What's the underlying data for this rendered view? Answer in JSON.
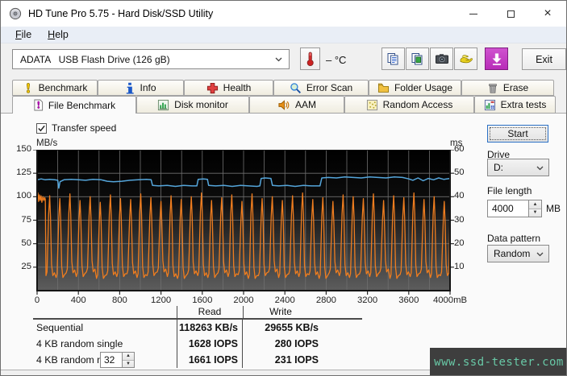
{
  "window": {
    "title": "HD Tune Pro 5.75 - Hard Disk/SSD Utility"
  },
  "menu": {
    "items": [
      {
        "label": "File"
      },
      {
        "label": "Help"
      }
    ]
  },
  "toolbar": {
    "drive_combo_value": "ADATA   USB Flash Drive (126 gB)",
    "temp_display": "– °C",
    "exit_label": "Exit",
    "icon_buttons": [
      "copy-text-icon",
      "copy-image-icon",
      "camera-icon",
      "donate-hands-icon",
      "download-arrow-icon"
    ]
  },
  "tabs": {
    "row1": [
      {
        "label": "Benchmark",
        "icon": "exclamation-icon"
      },
      {
        "label": "Info",
        "icon": "info-icon"
      },
      {
        "label": "Health",
        "icon": "red-cross-icon"
      },
      {
        "label": "Error Scan",
        "icon": "magnifier-icon"
      },
      {
        "label": "Folder Usage",
        "icon": "folder-icon"
      },
      {
        "label": "Erase",
        "icon": "trash-icon"
      }
    ],
    "row2": [
      {
        "label": "File Benchmark",
        "icon": "page-exclamation-icon",
        "active": true
      },
      {
        "label": "Disk monitor",
        "icon": "bar-chart-icon"
      },
      {
        "label": "AAM",
        "icon": "speaker-icon"
      },
      {
        "label": "Random Access",
        "icon": "dotted-square-icon"
      },
      {
        "label": "Extra tests",
        "icon": "mini-chart-grid-icon"
      }
    ]
  },
  "controls": {
    "transfer_speed_label": "Transfer speed",
    "start_label": "Start",
    "drive_label": "Drive",
    "drive_value": "D:",
    "file_length_label": "File length",
    "file_length_value": "4000",
    "file_length_unit": "MB",
    "data_pattern_label": "Data pattern",
    "data_pattern_value": "Random"
  },
  "chart_data": {
    "type": "line",
    "title": "",
    "ylabel_left": "MB/s",
    "ylabel_right": "ms",
    "xlim": [
      0,
      4000
    ],
    "ylim_left": [
      0,
      150
    ],
    "ylim_right": [
      0,
      60
    ],
    "grid": true,
    "x_ticks": [
      0,
      400,
      800,
      1200,
      1600,
      2000,
      2400,
      2800,
      3200,
      3600,
      4000
    ],
    "x_tick_labels": [
      "0",
      "400",
      "800",
      "1200",
      "1600",
      "2000",
      "2400",
      "2800",
      "3200",
      "3600",
      "4000mB"
    ],
    "y_left_ticks": [
      150,
      125,
      100,
      75,
      50,
      25
    ],
    "y_left_labels": [
      "150",
      "125",
      "100",
      "75",
      "50",
      "25"
    ],
    "y_right_ticks": [
      60,
      50,
      40,
      30,
      20,
      10
    ],
    "y_right_labels": [
      "60",
      "50",
      "40",
      "30",
      "20",
      "10"
    ],
    "plot_bg_top": "#000000",
    "plot_bg_bottom": "#5d5d5d",
    "grid_color": "#6f6f6f",
    "series": [
      {
        "id": "read",
        "name": "sequential-read-transfer",
        "color": "#55a6db",
        "points": [
          [
            0,
            118
          ],
          [
            40,
            119
          ],
          [
            80,
            118
          ],
          [
            120,
            118.5
          ],
          [
            170,
            118
          ],
          [
            200,
            117.5
          ],
          [
            210,
            109
          ],
          [
            222,
            116
          ],
          [
            260,
            118
          ],
          [
            330,
            118.5
          ],
          [
            400,
            118
          ],
          [
            470,
            117.5
          ],
          [
            540,
            118.5
          ],
          [
            620,
            118
          ],
          [
            680,
            116.5
          ],
          [
            740,
            116
          ],
          [
            820,
            116.5
          ],
          [
            900,
            117.5
          ],
          [
            980,
            118
          ],
          [
            1060,
            118.5
          ],
          [
            1105,
            118
          ],
          [
            1118,
            112
          ],
          [
            1180,
            111.5
          ],
          [
            1260,
            112
          ],
          [
            1340,
            111
          ],
          [
            1420,
            112
          ],
          [
            1500,
            111.5
          ],
          [
            1548,
            111.5
          ],
          [
            1560,
            118.5
          ],
          [
            1610,
            119
          ],
          [
            1650,
            118.5
          ],
          [
            1662,
            112
          ],
          [
            1730,
            111.5
          ],
          [
            1810,
            112
          ],
          [
            1890,
            111
          ],
          [
            1970,
            112
          ],
          [
            2050,
            111.5
          ],
          [
            2130,
            111
          ],
          [
            2158,
            111.5
          ],
          [
            2170,
            119.5
          ],
          [
            2210,
            120
          ],
          [
            2265,
            119.5
          ],
          [
            2280,
            112
          ],
          [
            2340,
            111.5
          ],
          [
            2420,
            112
          ],
          [
            2500,
            111
          ],
          [
            2580,
            112
          ],
          [
            2660,
            111.5
          ],
          [
            2740,
            111.5
          ],
          [
            2758,
            120
          ],
          [
            2820,
            120.5
          ],
          [
            2900,
            120
          ],
          [
            2980,
            121
          ],
          [
            3060,
            120.5
          ],
          [
            3140,
            120
          ],
          [
            3220,
            121
          ],
          [
            3300,
            120.5
          ],
          [
            3380,
            120
          ],
          [
            3460,
            121
          ],
          [
            3540,
            120.5
          ],
          [
            3600,
            119
          ],
          [
            3640,
            117.5
          ],
          [
            3690,
            120
          ],
          [
            3740,
            117
          ],
          [
            3790,
            119.5
          ],
          [
            3840,
            118
          ],
          [
            3890,
            120
          ],
          [
            3940,
            118.5
          ],
          [
            4000,
            119.5
          ]
        ]
      },
      {
        "id": "write",
        "name": "write-transfer-bursts",
        "color": "#ef7d1f",
        "lead_in": [
          [
            0,
            98
          ],
          [
            8,
            104
          ],
          [
            14,
            95
          ],
          [
            22,
            102
          ],
          [
            30,
            96
          ],
          [
            38,
            101
          ],
          [
            46,
            94
          ],
          [
            56,
            100
          ],
          [
            66,
            96
          ],
          [
            74,
            99
          ],
          [
            80,
            97
          ]
        ],
        "cycles_start_x": 80,
        "peaks": [
          101,
          98,
          103,
          96,
          100,
          94,
          102,
          98,
          97,
          103,
          99,
          95,
          101,
          97,
          100,
          104,
          96,
          99,
          102,
          95,
          103,
          98,
          100,
          96,
          101,
          104,
          97,
          99,
          95,
          102,
          100,
          98,
          103,
          96,
          101,
          99,
          104,
          97,
          100,
          95
        ],
        "valleys": [
          16,
          14,
          19,
          15,
          20,
          13,
          17,
          15,
          18,
          14,
          16,
          20,
          15,
          13,
          18,
          16,
          14,
          19,
          15,
          17,
          13,
          16,
          20,
          14,
          18,
          15,
          17,
          13,
          19,
          16,
          14,
          18,
          15,
          20,
          13,
          17,
          15,
          19,
          14,
          16
        ],
        "end_value": 88
      }
    ]
  },
  "results": {
    "headers": {
      "read": "Read",
      "write": "Write"
    },
    "rows": [
      {
        "label": "Sequential",
        "read": "118263 KB/s",
        "write": "29655 KB/s"
      },
      {
        "label": "4 KB random single",
        "read": "1628 IOPS",
        "write": "280 IOPS"
      },
      {
        "label": "4 KB random multi",
        "queue_depth": "32",
        "read": "1661 IOPS",
        "write": "231 IOPS"
      }
    ]
  },
  "watermark": {
    "text": "www.ssd-tester.com",
    "color": "#68c8a6",
    "bg": "#3e3e3e"
  }
}
